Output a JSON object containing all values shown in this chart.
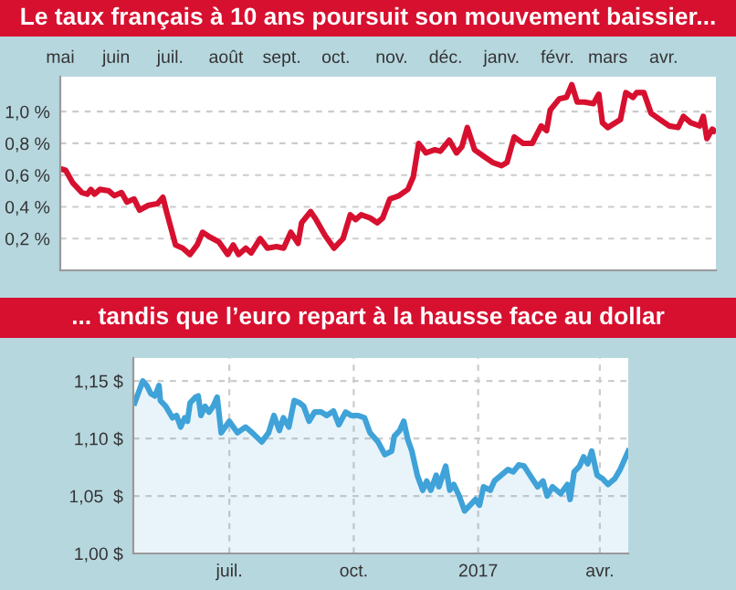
{
  "chart_data": [
    {
      "type": "line",
      "title": "Le taux français à 10 ans poursuit son mouvement baissier...",
      "grid": "y",
      "legend": false,
      "marker": "none",
      "line_style": "solid",
      "tick_labels": "xy",
      "xlim": [
        "2016-05-01",
        "2017-04-30"
      ],
      "ylim": [
        0,
        1.22
      ],
      "xticks": [
        {
          "value": "2016-05-01",
          "label": "mai"
        },
        {
          "value": "2016-06-01",
          "label": "juin"
        },
        {
          "value": "2016-07-01",
          "label": "juil."
        },
        {
          "value": "2016-08-01",
          "label": "août"
        },
        {
          "value": "2016-09-01",
          "label": "sept."
        },
        {
          "value": "2016-10-01",
          "label": "oct."
        },
        {
          "value": "2016-11-01",
          "label": "nov."
        },
        {
          "value": "2016-12-01",
          "label": "déc."
        },
        {
          "value": "2017-01-01",
          "label": "janv."
        },
        {
          "value": "2017-02-01",
          "label": "févr."
        },
        {
          "value": "2017-03-01",
          "label": "mars"
        },
        {
          "value": "2017-04-01",
          "label": "avr."
        }
      ],
      "yticks": [
        {
          "value": 0.2,
          "label": "0,2 %"
        },
        {
          "value": 0.4,
          "label": "0,4 %"
        },
        {
          "value": 0.6,
          "label": "0,6 %"
        },
        {
          "value": 0.8,
          "label": "0,8 %"
        },
        {
          "value": 1.0,
          "label": "1,0 %"
        }
      ],
      "series": [
        {
          "color": "#d7102f",
          "x": [
            "2016-05-01",
            "2016-05-04",
            "2016-05-08",
            "2016-05-13",
            "2016-05-16",
            "2016-05-18",
            "2016-05-20",
            "2016-05-23",
            "2016-05-28",
            "2016-05-31",
            "2016-06-04",
            "2016-06-07",
            "2016-06-11",
            "2016-06-14",
            "2016-06-19",
            "2016-06-24",
            "2016-06-27",
            "2016-06-29",
            "2016-07-04",
            "2016-07-08",
            "2016-07-12",
            "2016-07-16",
            "2016-07-19",
            "2016-07-23",
            "2016-07-28",
            "2016-08-02",
            "2016-08-05",
            "2016-08-08",
            "2016-08-12",
            "2016-08-15",
            "2016-08-20",
            "2016-08-24",
            "2016-08-29",
            "2016-09-02",
            "2016-09-06",
            "2016-09-10",
            "2016-09-12",
            "2016-09-17",
            "2016-09-20",
            "2016-09-25",
            "2016-09-30",
            "2016-10-05",
            "2016-10-09",
            "2016-10-12",
            "2016-10-15",
            "2016-10-20",
            "2016-10-24",
            "2016-10-27",
            "2016-10-31",
            "2016-11-05",
            "2016-11-10",
            "2016-11-13",
            "2016-11-16",
            "2016-11-20",
            "2016-11-25",
            "2016-11-28",
            "2016-12-03",
            "2016-12-07",
            "2016-12-10",
            "2016-12-13",
            "2016-12-17",
            "2016-12-22",
            "2016-12-27",
            "2017-01-01",
            "2017-01-04",
            "2017-01-08",
            "2017-01-13",
            "2017-01-18",
            "2017-01-23",
            "2017-01-26",
            "2017-01-28",
            "2017-02-02",
            "2017-02-06",
            "2017-02-09",
            "2017-02-12",
            "2017-02-16",
            "2017-02-21",
            "2017-02-24",
            "2017-02-26",
            "2017-03-01",
            "2017-03-08",
            "2017-03-11",
            "2017-03-15",
            "2017-03-17",
            "2017-03-21",
            "2017-03-25",
            "2017-03-30",
            "2017-04-04",
            "2017-04-09",
            "2017-04-12",
            "2017-04-16",
            "2017-04-21",
            "2017-04-23",
            "2017-04-25",
            "2017-04-28",
            "2017-04-29"
          ],
          "values": [
            0.64,
            0.63,
            0.55,
            0.49,
            0.48,
            0.51,
            0.48,
            0.51,
            0.5,
            0.47,
            0.49,
            0.43,
            0.45,
            0.38,
            0.41,
            0.42,
            0.46,
            0.37,
            0.16,
            0.14,
            0.1,
            0.16,
            0.24,
            0.21,
            0.18,
            0.1,
            0.16,
            0.1,
            0.14,
            0.11,
            0.2,
            0.14,
            0.15,
            0.14,
            0.24,
            0.17,
            0.3,
            0.37,
            0.32,
            0.22,
            0.14,
            0.2,
            0.35,
            0.32,
            0.35,
            0.33,
            0.3,
            0.33,
            0.45,
            0.47,
            0.51,
            0.59,
            0.8,
            0.74,
            0.76,
            0.75,
            0.82,
            0.74,
            0.78,
            0.9,
            0.76,
            0.72,
            0.68,
            0.66,
            0.68,
            0.84,
            0.8,
            0.8,
            0.91,
            0.88,
            1.01,
            1.08,
            1.09,
            1.17,
            1.06,
            1.06,
            1.05,
            1.11,
            0.93,
            0.9,
            0.95,
            1.12,
            1.09,
            1.12,
            1.12,
            0.99,
            0.95,
            0.91,
            0.9,
            0.97,
            0.93,
            0.91,
            0.97,
            0.83,
            0.89,
            0.88
          ]
        }
      ]
    },
    {
      "type": "area",
      "title": "... tandis que l’euro repart à la hausse face au dollar",
      "grid": true,
      "legend": false,
      "marker": "none",
      "line_style": "solid",
      "xlim": [
        "2016-04-21",
        "2017-04-22"
      ],
      "ylim": [
        1.0,
        1.17
      ],
      "xticks": [
        {
          "value": "2016-07-01",
          "label": "juil."
        },
        {
          "value": "2016-10-01",
          "label": "oct."
        },
        {
          "value": "2017-01-01",
          "label": "2017"
        },
        {
          "value": "2017-04-01",
          "label": "avr."
        }
      ],
      "yticks": [
        {
          "value": 1.0,
          "label": "1,00 $"
        },
        {
          "value": 1.05,
          "label": "1,05  $"
        },
        {
          "value": 1.1,
          "label": "1,10 $"
        },
        {
          "value": 1.15,
          "label": "1,15 $"
        }
      ],
      "series": [
        {
          "color": "#3fa2d8",
          "x": [
            "2016-04-22",
            "2016-04-28",
            "2016-05-01",
            "2016-05-04",
            "2016-05-07",
            "2016-05-10",
            "2016-05-11",
            "2016-05-15",
            "2016-05-20",
            "2016-05-23",
            "2016-05-26",
            "2016-05-29",
            "2016-05-31",
            "2016-06-02",
            "2016-06-06",
            "2016-06-08",
            "2016-06-10",
            "2016-06-13",
            "2016-06-16",
            "2016-06-19",
            "2016-06-22",
            "2016-06-25",
            "2016-06-28",
            "2016-07-01",
            "2016-07-07",
            "2016-07-13",
            "2016-07-18",
            "2016-07-25",
            "2016-07-30",
            "2016-08-03",
            "2016-08-07",
            "2016-08-10",
            "2016-08-14",
            "2016-08-18",
            "2016-08-22",
            "2016-08-25",
            "2016-08-29",
            "2016-09-02",
            "2016-09-07",
            "2016-09-11",
            "2016-09-16",
            "2016-09-20",
            "2016-09-25",
            "2016-09-29",
            "2016-10-04",
            "2016-10-09",
            "2016-10-13",
            "2016-10-19",
            "2016-10-24",
            "2016-10-29",
            "2016-10-31",
            "2016-11-04",
            "2016-11-07",
            "2016-11-10",
            "2016-11-13",
            "2016-11-17",
            "2016-11-21",
            "2016-11-24",
            "2016-11-27",
            "2016-12-01",
            "2016-12-03",
            "2016-12-08",
            "2016-12-11",
            "2016-12-14",
            "2016-12-18",
            "2016-12-22",
            "2016-12-26",
            "2016-12-30",
            "2017-01-02",
            "2017-01-05",
            "2017-01-10",
            "2017-01-13",
            "2017-01-18",
            "2017-01-23",
            "2017-01-27",
            "2017-01-31",
            "2017-02-04",
            "2017-02-10",
            "2017-02-14",
            "2017-02-18",
            "2017-02-21",
            "2017-02-25",
            "2017-02-28",
            "2017-03-03",
            "2017-03-08",
            "2017-03-10",
            "2017-03-13",
            "2017-03-17",
            "2017-03-20",
            "2017-03-23",
            "2017-03-26",
            "2017-03-30",
            "2017-04-03",
            "2017-04-07",
            "2017-04-12",
            "2017-04-16",
            "2017-04-22"
          ],
          "values": [
            1.131,
            1.15,
            1.146,
            1.139,
            1.137,
            1.146,
            1.133,
            1.128,
            1.118,
            1.12,
            1.11,
            1.118,
            1.115,
            1.131,
            1.136,
            1.137,
            1.12,
            1.128,
            1.123,
            1.128,
            1.136,
            1.105,
            1.11,
            1.115,
            1.105,
            1.11,
            1.105,
            1.097,
            1.105,
            1.12,
            1.107,
            1.118,
            1.11,
            1.133,
            1.131,
            1.128,
            1.115,
            1.123,
            1.123,
            1.12,
            1.124,
            1.112,
            1.123,
            1.12,
            1.12,
            1.118,
            1.105,
            1.097,
            1.086,
            1.089,
            1.102,
            1.107,
            1.115,
            1.099,
            1.089,
            1.068,
            1.055,
            1.063,
            1.055,
            1.068,
            1.058,
            1.076,
            1.055,
            1.06,
            1.05,
            1.037,
            1.042,
            1.047,
            1.042,
            1.058,
            1.055,
            1.063,
            1.068,
            1.073,
            1.071,
            1.077,
            1.076,
            1.065,
            1.058,
            1.063,
            1.05,
            1.058,
            1.055,
            1.052,
            1.06,
            1.047,
            1.071,
            1.076,
            1.084,
            1.078,
            1.089,
            1.068,
            1.065,
            1.06,
            1.065,
            1.073,
            1.089
          ]
        }
      ]
    }
  ]
}
